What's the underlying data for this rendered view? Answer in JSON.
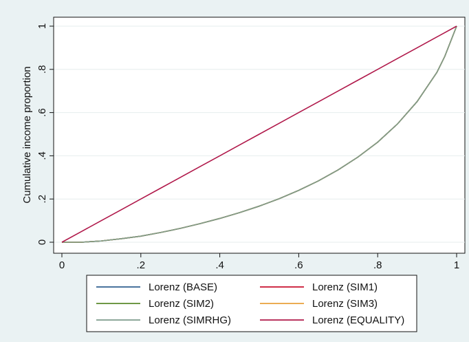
{
  "chart_data": {
    "type": "line",
    "title": "",
    "xlabel": "",
    "ylabel": "Cumulative income proportion",
    "xlim": [
      0,
      1
    ],
    "ylim": [
      0,
      1
    ],
    "x_ticks": [
      "0",
      ".2",
      ".4",
      ".6",
      ".8",
      "1"
    ],
    "y_ticks": [
      "0",
      ".2",
      ".4",
      ".6",
      ".8",
      "1"
    ],
    "grid": true,
    "legend_position": "bottom",
    "x": [
      0,
      0.05,
      0.1,
      0.15,
      0.2,
      0.25,
      0.3,
      0.35,
      0.4,
      0.45,
      0.5,
      0.55,
      0.6,
      0.65,
      0.7,
      0.75,
      0.8,
      0.85,
      0.9,
      0.95,
      0.97,
      1
    ],
    "series": [
      {
        "name": "Lorenz (BASE)",
        "color": "#2f5f8f",
        "values": [
          0,
          0,
          0.006,
          0.016,
          0.028,
          0.045,
          0.064,
          0.086,
          0.11,
          0.137,
          0.167,
          0.201,
          0.24,
          0.284,
          0.335,
          0.394,
          0.463,
          0.547,
          0.651,
          0.786,
          0.86,
          1
        ]
      },
      {
        "name": "Lorenz (SIM1)",
        "color": "#c8102e",
        "values": [
          0,
          0,
          0.006,
          0.016,
          0.028,
          0.045,
          0.064,
          0.086,
          0.11,
          0.137,
          0.167,
          0.201,
          0.24,
          0.284,
          0.335,
          0.394,
          0.463,
          0.547,
          0.651,
          0.786,
          0.86,
          1
        ]
      },
      {
        "name": "Lorenz (SIM2)",
        "color": "#5a8a2c",
        "values": [
          0,
          0,
          0.006,
          0.016,
          0.028,
          0.045,
          0.064,
          0.086,
          0.11,
          0.137,
          0.167,
          0.201,
          0.24,
          0.284,
          0.335,
          0.394,
          0.463,
          0.547,
          0.651,
          0.786,
          0.86,
          1
        ]
      },
      {
        "name": "Lorenz (SIM3)",
        "color": "#e8a13a",
        "values": [
          0,
          0,
          0.006,
          0.016,
          0.028,
          0.045,
          0.064,
          0.086,
          0.11,
          0.137,
          0.167,
          0.201,
          0.24,
          0.284,
          0.335,
          0.394,
          0.463,
          0.547,
          0.651,
          0.786,
          0.86,
          1
        ]
      },
      {
        "name": "Lorenz (SIMRHG)",
        "color": "#7d9c8c",
        "values": [
          0,
          0,
          0.006,
          0.016,
          0.028,
          0.045,
          0.064,
          0.086,
          0.11,
          0.137,
          0.167,
          0.201,
          0.24,
          0.284,
          0.335,
          0.394,
          0.463,
          0.547,
          0.651,
          0.786,
          0.86,
          1
        ]
      },
      {
        "name": "Lorenz (EQUALITY)",
        "color": "#b0184a",
        "values": [
          0,
          0.05,
          0.1,
          0.15,
          0.2,
          0.25,
          0.3,
          0.35,
          0.4,
          0.45,
          0.5,
          0.55,
          0.6,
          0.65,
          0.7,
          0.75,
          0.8,
          0.85,
          0.9,
          0.95,
          0.97,
          1
        ]
      }
    ]
  }
}
